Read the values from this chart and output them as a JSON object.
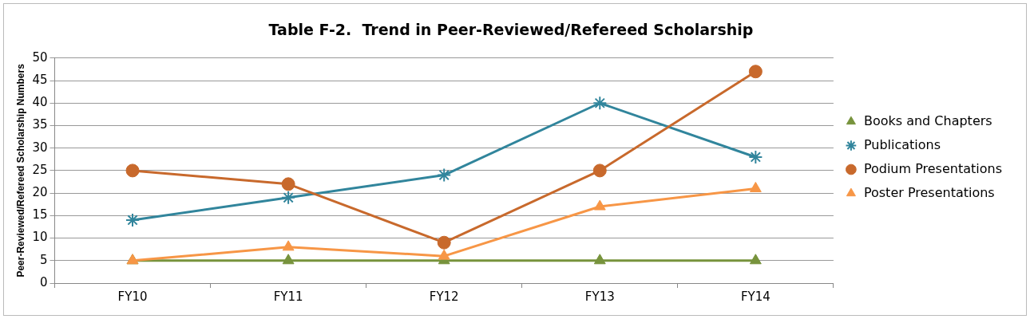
{
  "chart_data": {
    "type": "line",
    "title": "Table F-2.  Trend in Peer-Reviewed/Refereed Scholarship",
    "ylabel": "Peer-Reviewed/Refereed Scholarship Numbers",
    "categories": [
      "FY10",
      "FY11",
      "FY12",
      "FY13",
      "FY14"
    ],
    "series": [
      {
        "name": "Books and Chapters",
        "color": "#77933c",
        "marker": "triangle",
        "values": [
          5,
          5,
          5,
          5,
          5
        ]
      },
      {
        "name": "Publications",
        "color": "#31859c",
        "marker": "cross",
        "values": [
          14,
          19,
          24,
          40,
          28
        ]
      },
      {
        "name": "Podium Presentations",
        "color": "#c8692c",
        "marker": "circle",
        "values": [
          25,
          22,
          9,
          25,
          47
        ]
      },
      {
        "name": "Poster Presentations",
        "color": "#f79646",
        "marker": "triangle",
        "values": [
          5,
          8,
          6,
          17,
          21
        ]
      }
    ],
    "ylim": [
      0,
      50
    ],
    "yticks": [
      0,
      5,
      10,
      15,
      20,
      25,
      30,
      35,
      40,
      45,
      50
    ],
    "grid": "y",
    "legend": "right",
    "line_style": "solid"
  }
}
